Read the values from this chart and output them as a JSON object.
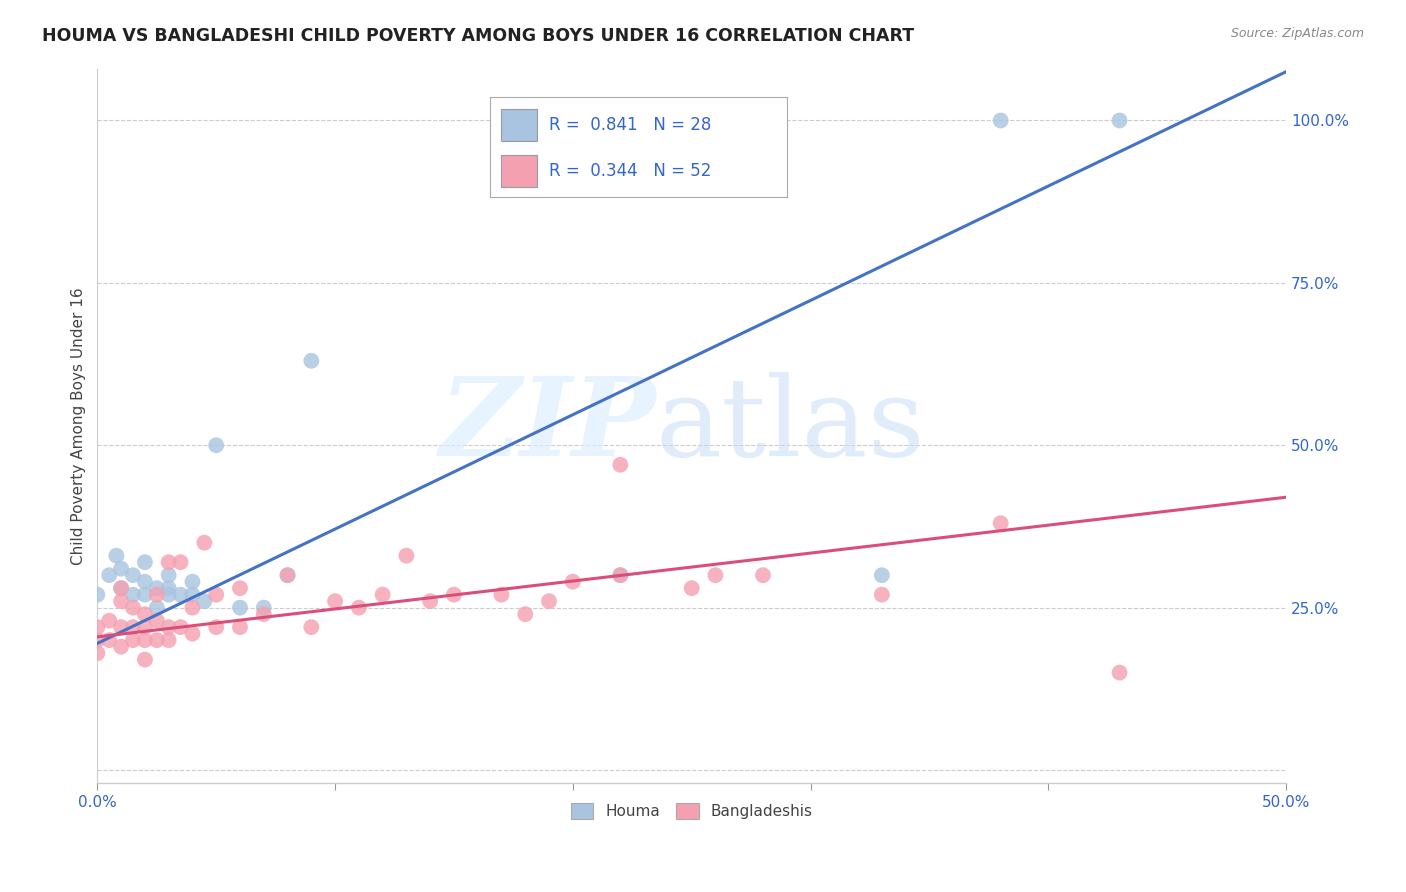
{
  "title": "HOUMA VS BANGLADESHI CHILD POVERTY AMONG BOYS UNDER 16 CORRELATION CHART",
  "source": "Source: ZipAtlas.com",
  "ylabel": "Child Poverty Among Boys Under 16",
  "xlim": [
    0.0,
    0.5
  ],
  "ylim": [
    -0.02,
    1.08
  ],
  "xticks": [
    0.0,
    0.1,
    0.2,
    0.3,
    0.4,
    0.5
  ],
  "xticklabels": [
    "0.0%",
    "",
    "",
    "",
    "",
    "50.0%"
  ],
  "yticks_right": [
    0.0,
    0.25,
    0.5,
    0.75,
    1.0
  ],
  "yticklabels_right": [
    "",
    "25.0%",
    "50.0%",
    "75.0%",
    "100.0%"
  ],
  "houma_color": "#a8c4e0",
  "houma_line_color": "#4472c4",
  "bangladeshi_color": "#f4a0b0",
  "bangladeshi_line_color": "#d94f7a",
  "background_color": "#ffffff",
  "grid_color": "#cccccc",
  "houma_x": [
    0.0,
    0.005,
    0.008,
    0.01,
    0.01,
    0.015,
    0.015,
    0.02,
    0.02,
    0.02,
    0.025,
    0.025,
    0.03,
    0.03,
    0.03,
    0.035,
    0.04,
    0.04,
    0.045,
    0.05,
    0.06,
    0.07,
    0.08,
    0.09,
    0.22,
    0.33,
    0.38,
    0.43
  ],
  "houma_y": [
    0.27,
    0.3,
    0.33,
    0.28,
    0.31,
    0.27,
    0.3,
    0.27,
    0.29,
    0.32,
    0.25,
    0.28,
    0.27,
    0.28,
    0.3,
    0.27,
    0.27,
    0.29,
    0.26,
    0.5,
    0.25,
    0.25,
    0.3,
    0.63,
    0.3,
    0.3,
    1.0,
    1.0
  ],
  "bangladeshi_x": [
    0.0,
    0.0,
    0.0,
    0.005,
    0.005,
    0.01,
    0.01,
    0.01,
    0.01,
    0.015,
    0.015,
    0.015,
    0.02,
    0.02,
    0.02,
    0.02,
    0.025,
    0.025,
    0.025,
    0.03,
    0.03,
    0.03,
    0.035,
    0.035,
    0.04,
    0.04,
    0.045,
    0.05,
    0.05,
    0.06,
    0.06,
    0.07,
    0.08,
    0.09,
    0.1,
    0.11,
    0.12,
    0.13,
    0.14,
    0.15,
    0.17,
    0.18,
    0.19,
    0.2,
    0.22,
    0.22,
    0.25,
    0.26,
    0.28,
    0.33,
    0.38,
    0.43
  ],
  "bangladeshi_y": [
    0.18,
    0.2,
    0.22,
    0.2,
    0.23,
    0.19,
    0.22,
    0.26,
    0.28,
    0.2,
    0.22,
    0.25,
    0.17,
    0.2,
    0.22,
    0.24,
    0.2,
    0.23,
    0.27,
    0.2,
    0.22,
    0.32,
    0.22,
    0.32,
    0.21,
    0.25,
    0.35,
    0.22,
    0.27,
    0.22,
    0.28,
    0.24,
    0.3,
    0.22,
    0.26,
    0.25,
    0.27,
    0.33,
    0.26,
    0.27,
    0.27,
    0.24,
    0.26,
    0.29,
    0.3,
    0.47,
    0.28,
    0.3,
    0.3,
    0.27,
    0.38,
    0.15
  ],
  "houma_trend_x": [
    0.0,
    0.5
  ],
  "houma_trend_y": [
    0.195,
    1.075
  ],
  "bangladeshi_trend_x": [
    0.0,
    0.5
  ],
  "bangladeshi_trend_y": [
    0.205,
    0.42
  ]
}
